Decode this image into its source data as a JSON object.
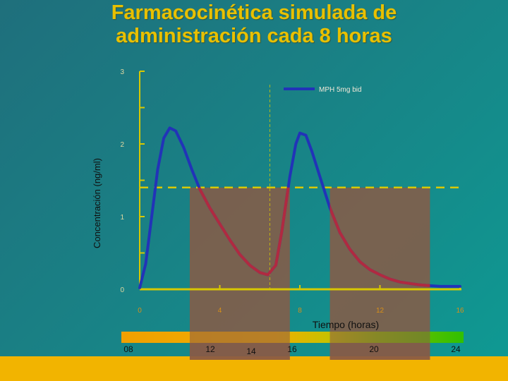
{
  "title_line1": "Farmacocinética simulada de",
  "title_line2": "administración cada 8 horas",
  "chart_data": {
    "type": "line",
    "title": "Farmacocinética simulada de administración cada 8 horas",
    "xlabel": "Tiempo (horas)",
    "ylabel": "Concentración (ng/ml)",
    "xlim": [
      0,
      16
    ],
    "ylim": [
      0,
      3
    ],
    "x_ticks": [
      "0",
      "4",
      "8",
      "12",
      "16"
    ],
    "y_ticks": [
      "0",
      "1",
      "2",
      "3"
    ],
    "legend": "MPH 5mg bid",
    "threshold": 1.4,
    "series": [
      {
        "name": "MPH 5mg bid",
        "x": [
          0,
          0.3,
          0.6,
          0.9,
          1.2,
          1.5,
          1.8,
          2.2,
          2.6,
          3.0,
          3.5,
          4.0,
          4.5,
          5.0,
          5.5,
          6.0,
          6.4,
          6.8,
          7.1,
          7.5,
          7.8,
          8.0,
          8.3,
          8.6,
          9.0,
          9.5,
          10.0,
          10.5,
          11.0,
          11.5,
          12.0,
          12.5,
          13.0,
          13.5,
          14.0,
          14.5,
          15.0,
          16.0
        ],
        "values": [
          0.02,
          0.35,
          1.0,
          1.65,
          2.08,
          2.22,
          2.18,
          1.95,
          1.65,
          1.38,
          1.12,
          0.9,
          0.68,
          0.48,
          0.33,
          0.23,
          0.2,
          0.33,
          0.8,
          1.55,
          2.0,
          2.15,
          2.12,
          1.9,
          1.55,
          1.12,
          0.78,
          0.55,
          0.38,
          0.27,
          0.2,
          0.14,
          0.1,
          0.08,
          0.06,
          0.05,
          0.04,
          0.04
        ]
      }
    ],
    "shaded_regions": [
      [
        2.5,
        7.5
      ],
      [
        9.5,
        14.5
      ]
    ],
    "dashed_vline_x": 6.5,
    "clock": {
      "labels": [
        "08",
        "12",
        "14",
        "16",
        "20",
        "24"
      ],
      "values": [
        8,
        12,
        14,
        16,
        20,
        24
      ]
    },
    "colors": {
      "line": "#2233b8",
      "line_over_shade": "#b02a40",
      "axis": "#d8c800",
      "shade": "#8a5a45",
      "tick_label": "#d89018"
    }
  }
}
